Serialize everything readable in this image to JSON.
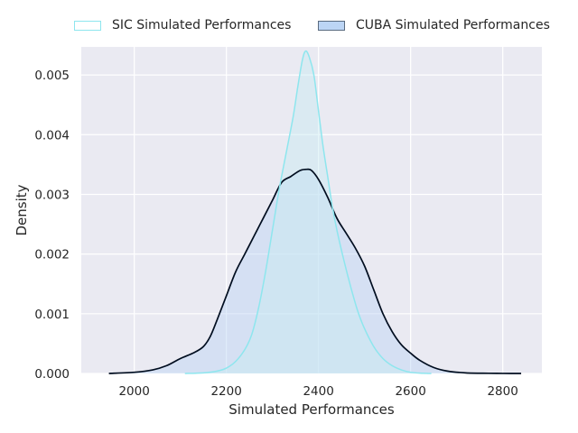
{
  "chart_data": {
    "type": "area",
    "title": "",
    "xlabel": "Simulated Performances",
    "ylabel": "Density",
    "xlim": [
      1885,
      2885
    ],
    "ylim": [
      0,
      0.00547
    ],
    "grid": true,
    "legend_position": "top-center",
    "x_ticks": [
      "2000",
      "2200",
      "2400",
      "2600",
      "2800"
    ],
    "y_ticks": [
      "0.000",
      "0.001",
      "0.002",
      "0.003",
      "0.004",
      "0.005"
    ],
    "series": [
      {
        "name": "SIC Simulated Performances",
        "color": "#8ee6ee",
        "fill": "#c8ecf2",
        "x": [
          2110,
          2150,
          2180,
          2200,
          2220,
          2240,
          2255,
          2270,
          2285,
          2300,
          2315,
          2330,
          2345,
          2355,
          2365,
          2372,
          2380,
          2390,
          2400,
          2410,
          2420,
          2430,
          2440,
          2455,
          2470,
          2485,
          2500,
          2520,
          2540,
          2560,
          2580,
          2600,
          2620,
          2645
        ],
        "y": [
          0,
          1e-05,
          4e-05,
          9e-05,
          0.0002,
          0.0004,
          0.00065,
          0.0011,
          0.0017,
          0.0024,
          0.0031,
          0.0037,
          0.0043,
          0.0048,
          0.00525,
          0.0054,
          0.0053,
          0.005,
          0.0044,
          0.0038,
          0.0033,
          0.0028,
          0.0024,
          0.0019,
          0.00145,
          0.00105,
          0.00075,
          0.00045,
          0.00025,
          0.00013,
          6e-05,
          2e-05,
          5e-06,
          0
        ]
      },
      {
        "name": "CUBA Simulated Performances",
        "color": "#000d1f",
        "fill": "#bcd5f5",
        "x": [
          1945,
          2000,
          2040,
          2070,
          2100,
          2130,
          2150,
          2165,
          2180,
          2200,
          2220,
          2240,
          2260,
          2280,
          2300,
          2320,
          2340,
          2360,
          2375,
          2385,
          2400,
          2420,
          2440,
          2460,
          2480,
          2500,
          2520,
          2540,
          2560,
          2580,
          2600,
          2620,
          2650,
          2680,
          2720,
          2770,
          2800,
          2840
        ],
        "y": [
          0,
          2e-05,
          6e-05,
          0.00013,
          0.00025,
          0.00035,
          0.00045,
          0.00062,
          0.0009,
          0.0013,
          0.0017,
          0.002,
          0.0023,
          0.0026,
          0.0029,
          0.0032,
          0.0033,
          0.0034,
          0.00342,
          0.0034,
          0.00325,
          0.00295,
          0.0026,
          0.00235,
          0.0021,
          0.0018,
          0.0014,
          0.001,
          0.0007,
          0.00048,
          0.00034,
          0.00022,
          0.0001,
          4e-05,
          1e-05,
          3e-06,
          1e-06,
          0
        ]
      }
    ]
  }
}
